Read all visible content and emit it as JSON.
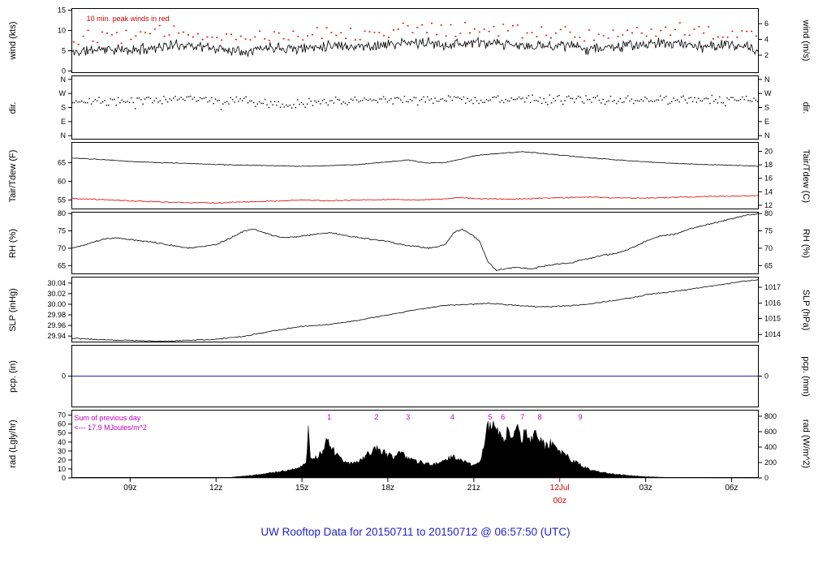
{
  "title": {
    "text": "UW Rooftop Data for 20150711  to  20150712 @ 06:57:50  (UTC)",
    "color": "#2222cc"
  },
  "colors": {
    "red": "#cc0000",
    "magenta": "#bb00bb",
    "precip_blue": "#2222cc",
    "trace_black": "#000000"
  },
  "x_axis": {
    "domain_hours": [
      6.95,
      30.95
    ],
    "ticks": [
      {
        "hour": 9,
        "label": "09z",
        "color": "#000000"
      },
      {
        "hour": 12,
        "label": "12z",
        "color": "#000000"
      },
      {
        "hour": 15,
        "label": "15z",
        "color": "#000000"
      },
      {
        "hour": 18,
        "label": "18z",
        "color": "#000000"
      },
      {
        "hour": 21,
        "label": "21z",
        "color": "#000000"
      },
      {
        "hour": 24,
        "label": "12Jul",
        "label2": "00z",
        "color": "#cc0000"
      },
      {
        "hour": 27,
        "label": "03z",
        "color": "#000000"
      },
      {
        "hour": 30,
        "label": "06z",
        "color": "#000000"
      }
    ]
  },
  "chart_data": [
    {
      "id": "wind",
      "type": "line",
      "label_left": "wind (kts)",
      "label_right": "wind (m/s)",
      "ylim": [
        -0.5,
        15.5
      ],
      "yticks_left": [
        {
          "v": 0,
          "t": "0"
        },
        {
          "v": 5,
          "t": "5"
        },
        {
          "v": 10,
          "t": "10"
        },
        {
          "v": 15,
          "t": "15"
        }
      ],
      "yticks_right": [
        {
          "v": 3.89,
          "t": "2"
        },
        {
          "v": 7.78,
          "t": "4"
        },
        {
          "v": 11.66,
          "t": "6"
        }
      ],
      "annotations": [
        {
          "text": "10 min. peak winds in red",
          "color": "#cc0000",
          "fx": 0.022,
          "fy": 0.1
        }
      ],
      "series": [
        {
          "name": "wind speed",
          "draw": "noisyline",
          "color": "#000000",
          "noise": 1.6,
          "samples": 720,
          "seed": 11,
          "kx": [
            7,
            8,
            9,
            10,
            11,
            12,
            13,
            14,
            15,
            16,
            17,
            18,
            19,
            20,
            21,
            22,
            23,
            24,
            25,
            26,
            27,
            28,
            29,
            30,
            31
          ],
          "ky": [
            4.5,
            5.5,
            5,
            6,
            6.5,
            5.5,
            5,
            6,
            5.5,
            6.5,
            6,
            6.5,
            7,
            6.5,
            7,
            6.5,
            6,
            6.5,
            5.5,
            6,
            6.5,
            7,
            6,
            6.5,
            5
          ]
        },
        {
          "name": "10 min peak wind",
          "draw": "peakdots",
          "color": "#cc0000",
          "noise": 1.8,
          "interval_min": 10,
          "seed": 12,
          "kx": [
            7,
            8,
            9,
            10,
            11,
            12,
            13,
            14,
            15,
            16,
            17,
            18,
            19,
            20,
            21,
            22,
            23,
            24,
            25,
            26,
            27,
            28,
            29,
            30,
            31
          ],
          "ky": [
            7,
            8,
            7.5,
            8.5,
            9,
            8,
            7.5,
            8.5,
            8,
            9,
            8.5,
            9,
            9.5,
            9,
            9.5,
            9,
            8.5,
            9,
            8,
            8.5,
            9,
            9.5,
            8.5,
            9,
            7.5
          ]
        }
      ]
    },
    {
      "id": "dir",
      "type": "scatter",
      "label_left": "dir.",
      "label_right": "dir.",
      "ylim": [
        -25,
        385
      ],
      "yticks_left": [
        {
          "v": 0,
          "t": "N"
        },
        {
          "v": 90,
          "t": "E"
        },
        {
          "v": 180,
          "t": "S"
        },
        {
          "v": 270,
          "t": "W"
        },
        {
          "v": 360,
          "t": "N"
        }
      ],
      "yticks_right": [
        {
          "v": 0,
          "t": "N"
        },
        {
          "v": 90,
          "t": "E"
        },
        {
          "v": 180,
          "t": "S"
        },
        {
          "v": 270,
          "t": "W"
        },
        {
          "v": 360,
          "t": "N"
        }
      ],
      "annotations": [],
      "series": [
        {
          "name": "wind direction",
          "draw": "scatter",
          "color": "#000000",
          "noise": 24,
          "interval_min": 4,
          "seed": 21,
          "kx": [
            7,
            9,
            11,
            13,
            14.5,
            15.5,
            17,
            19,
            21,
            23,
            25,
            27,
            29,
            31
          ],
          "ky": [
            215,
            228,
            232,
            222,
            200,
            214,
            228,
            233,
            228,
            232,
            228,
            224,
            232,
            228
          ]
        }
      ]
    },
    {
      "id": "temp",
      "type": "line",
      "label_left": "Tair/Tdew (F)",
      "label_right": "Tair/Tdew (C)",
      "ylim": [
        52.5,
        70.5
      ],
      "yticks_left": [
        {
          "v": 55,
          "t": "55"
        },
        {
          "v": 60,
          "t": "60"
        },
        {
          "v": 65,
          "t": "65"
        }
      ],
      "yticks_right": [
        {
          "v": 53.6,
          "t": "12"
        },
        {
          "v": 57.2,
          "t": "14"
        },
        {
          "v": 60.8,
          "t": "16"
        },
        {
          "v": 64.4,
          "t": "18"
        },
        {
          "v": 68,
          "t": "20"
        }
      ],
      "annotations": [],
      "series": [
        {
          "name": "air temperature",
          "draw": "noisyline",
          "color": "#000000",
          "noise": 0.12,
          "samples": 520,
          "seed": 31,
          "kx": [
            7,
            8,
            9,
            10,
            11,
            12,
            13,
            14,
            15,
            16,
            17,
            18,
            18.7,
            19.3,
            20,
            20.6,
            21,
            21.5,
            22,
            22.7,
            23.3,
            24,
            25,
            26,
            27,
            28,
            29,
            30,
            31
          ],
          "ky": [
            66.2,
            65.8,
            65.3,
            65,
            64.8,
            64.5,
            64.3,
            64.2,
            64,
            64.2,
            64.5,
            65.2,
            65.7,
            64.9,
            65,
            66,
            66.8,
            67.2,
            67.5,
            67.9,
            67.5,
            67,
            66.3,
            65.7,
            65.2,
            64.8,
            64.5,
            64.3,
            64
          ]
        },
        {
          "name": "dew point",
          "draw": "noisyline",
          "color": "#dd0000",
          "noise": 0.18,
          "samples": 520,
          "seed": 32,
          "kx": [
            7,
            8,
            9,
            10,
            11,
            12,
            13,
            14,
            15,
            16,
            17,
            18,
            19,
            20,
            20.5,
            21,
            22,
            23,
            24,
            25,
            26,
            27,
            28,
            29,
            30,
            31
          ],
          "ky": [
            55.4,
            55.1,
            54.8,
            54.5,
            54.3,
            54.2,
            54.5,
            54.7,
            55,
            54.8,
            55,
            55.2,
            55,
            55.3,
            55.7,
            55.4,
            55.2,
            55.4,
            55.6,
            55.8,
            55.6,
            55.5,
            55.7,
            55.9,
            56,
            56.2
          ]
        }
      ]
    },
    {
      "id": "rh",
      "type": "line",
      "label_left": "RH (%)",
      "label_right": "RH (%)",
      "ylim": [
        62.5,
        80.5
      ],
      "yticks_left": [
        {
          "v": 65,
          "t": "65"
        },
        {
          "v": 70,
          "t": "70"
        },
        {
          "v": 75,
          "t": "75"
        },
        {
          "v": 80,
          "t": "80"
        }
      ],
      "yticks_right": [
        {
          "v": 65,
          "t": "65"
        },
        {
          "v": 70,
          "t": "70"
        },
        {
          "v": 75,
          "t": "75"
        },
        {
          "v": 80,
          "t": "80"
        }
      ],
      "annotations": [],
      "series": [
        {
          "name": "relative humidity",
          "draw": "noisyline",
          "color": "#000000",
          "noise": 0.25,
          "samples": 600,
          "seed": 41,
          "kx": [
            7,
            8,
            8.5,
            9,
            9.5,
            10,
            11,
            11.5,
            12,
            12.5,
            13,
            13.3,
            13.7,
            14,
            14.5,
            15,
            15.5,
            16,
            16.3,
            17,
            17.5,
            18,
            18.5,
            19,
            19.5,
            20,
            20.3,
            20.6,
            20.9,
            21.2,
            21.5,
            21.8,
            22,
            22.5,
            23,
            23.5,
            24,
            24.5,
            25,
            25.5,
            26,
            26.5,
            27,
            27.5,
            28,
            28.5,
            29,
            29.5,
            30,
            30.5,
            31
          ],
          "ky": [
            70,
            72.5,
            73,
            72.5,
            72,
            71.5,
            70,
            70.5,
            71,
            73,
            75,
            75.5,
            74.5,
            73.5,
            73,
            73.5,
            74,
            74.5,
            74,
            73,
            72.5,
            72,
            71,
            70.5,
            70,
            71,
            74.5,
            75.5,
            74,
            72,
            66,
            63.5,
            64,
            64.5,
            64,
            65,
            65.5,
            66,
            67,
            68,
            68.5,
            70,
            72,
            73.5,
            74,
            75.5,
            76.5,
            77.5,
            78.5,
            79.5,
            80
          ]
        }
      ]
    },
    {
      "id": "slp",
      "type": "line",
      "label_left": "SLP (inHg)",
      "label_right": "SLP (hPa)",
      "ylim": [
        29.928,
        30.052
      ],
      "yticks_left": [
        {
          "v": 29.94,
          "t": "29.94"
        },
        {
          "v": 29.96,
          "t": "29.96"
        },
        {
          "v": 29.98,
          "t": "29.98"
        },
        {
          "v": 30.0,
          "t": "30.00"
        },
        {
          "v": 30.02,
          "t": "30.02"
        },
        {
          "v": 30.04,
          "t": "30.04"
        }
      ],
      "yticks_right": [
        {
          "v": 29.943,
          "t": "1014"
        },
        {
          "v": 29.973,
          "t": "1015"
        },
        {
          "v": 30.002,
          "t": "1016"
        },
        {
          "v": 30.032,
          "t": "1017"
        }
      ],
      "annotations": [],
      "series": [
        {
          "name": "sea level pressure",
          "draw": "noisyline",
          "color": "#000000",
          "noise": 0.0012,
          "samples": 520,
          "seed": 51,
          "kx": [
            7,
            8,
            9,
            10,
            11,
            12,
            13,
            14,
            15,
            16,
            17,
            18,
            19,
            20,
            21,
            21.5,
            22,
            22.5,
            23,
            23.5,
            24,
            24.5,
            25,
            25.5,
            26,
            26.5,
            27,
            28,
            28.5,
            29,
            29.5,
            30,
            30.5,
            31
          ],
          "ky": [
            29.936,
            29.933,
            29.932,
            29.93,
            29.932,
            29.934,
            29.94,
            29.95,
            29.958,
            29.962,
            29.97,
            29.98,
            29.99,
            29.998,
            30.0,
            30.002,
            30.0,
            29.998,
            29.996,
            29.995,
            29.996,
            29.998,
            30.0,
            30.004,
            30.008,
            30.012,
            30.018,
            30.024,
            30.028,
            30.032,
            30.036,
            30.04,
            30.044,
            30.046
          ]
        }
      ]
    },
    {
      "id": "pcp",
      "type": "line",
      "label_left": "pcp. (in)",
      "label_right": "pcp. (mm)",
      "ylim": [
        -1,
        1
      ],
      "yticks_left": [
        {
          "v": 0,
          "t": "0"
        }
      ],
      "yticks_right": [
        {
          "v": 0,
          "t": "0"
        }
      ],
      "annotations": [],
      "series": [
        {
          "name": "precipitation",
          "draw": "flatline",
          "color": "#2222cc",
          "value": 0
        }
      ]
    },
    {
      "id": "rad",
      "type": "area",
      "label_left": "rad (Lgly/hr)",
      "label_right": "rad (W/m^2)",
      "ylim": [
        0,
        76
      ],
      "yticks_left": [
        {
          "v": 0,
          "t": "0"
        },
        {
          "v": 10,
          "t": "10"
        },
        {
          "v": 20,
          "t": "20"
        },
        {
          "v": 30,
          "t": "30"
        },
        {
          "v": 40,
          "t": "40"
        },
        {
          "v": 50,
          "t": "50"
        },
        {
          "v": 60,
          "t": "60"
        },
        {
          "v": 70,
          "t": "70"
        }
      ],
      "yticks_right": [
        {
          "v": 0,
          "t": "0"
        },
        {
          "v": 17.2,
          "t": "200"
        },
        {
          "v": 34.4,
          "t": "400"
        },
        {
          "v": 51.6,
          "t": "600"
        },
        {
          "v": 68.8,
          "t": "800"
        }
      ],
      "annotations": [
        {
          "text": "Sum of previous day",
          "color": "#bb00bb",
          "fx": 0.004,
          "fy": 0.06
        },
        {
          "text": "<--- 17.9 MJoules/m^2",
          "color": "#bb00bb",
          "fx": 0.004,
          "fy": 0.2
        }
      ],
      "milestones": {
        "color": "#bb00bb",
        "y": 68,
        "items": [
          {
            "t": "1",
            "hour": 15.95
          },
          {
            "t": "2",
            "hour": 17.6
          },
          {
            "t": "3",
            "hour": 18.7
          },
          {
            "t": "4",
            "hour": 20.25
          },
          {
            "t": "5",
            "hour": 21.57
          },
          {
            "t": "6",
            "hour": 22.02
          },
          {
            "t": "7",
            "hour": 22.7
          },
          {
            "t": "8",
            "hour": 23.3
          },
          {
            "t": "9",
            "hour": 24.72
          }
        ]
      },
      "series": [
        {
          "name": "solar radiation",
          "draw": "area",
          "color": "#000000",
          "noise": 0.3,
          "samples": 650,
          "seed": 71,
          "kx": [
            7,
            12,
            12.4,
            13,
            13.5,
            14,
            14.4,
            14.7,
            15,
            15.15,
            15.22,
            15.3,
            15.5,
            15.7,
            15.85,
            16,
            16.15,
            16.3,
            16.5,
            16.7,
            17,
            17.2,
            17.4,
            17.6,
            17.8,
            18,
            18.2,
            18.4,
            18.6,
            18.8,
            19,
            19.3,
            19.6,
            19.9,
            20.1,
            20.3,
            20.5,
            20.7,
            21,
            21.2,
            21.35,
            21.5,
            21.6,
            21.75,
            21.9,
            22.05,
            22.2,
            22.35,
            22.5,
            22.65,
            22.8,
            22.95,
            23.1,
            23.3,
            23.5,
            23.7,
            23.9,
            24.1,
            24.3,
            24.5,
            24.8,
            25.1,
            25.5,
            26,
            26.5,
            27,
            27.5,
            28,
            28.5,
            31
          ],
          "ky": [
            0,
            0,
            0.5,
            2,
            4,
            6,
            8,
            10,
            13,
            16,
            54,
            20,
            22,
            30,
            40,
            36,
            28,
            22,
            17,
            16,
            19,
            24,
            30,
            32,
            30,
            26,
            24,
            27,
            25,
            21,
            18,
            16,
            15,
            17,
            21,
            24,
            22,
            18,
            13,
            18,
            35,
            62,
            55,
            65,
            48,
            38,
            55,
            45,
            58,
            42,
            50,
            40,
            48,
            42,
            35,
            38,
            30,
            28,
            24,
            18,
            13,
            9,
            6,
            4,
            2.5,
            1.5,
            0.8,
            0.4,
            0.2,
            0
          ]
        }
      ]
    }
  ]
}
